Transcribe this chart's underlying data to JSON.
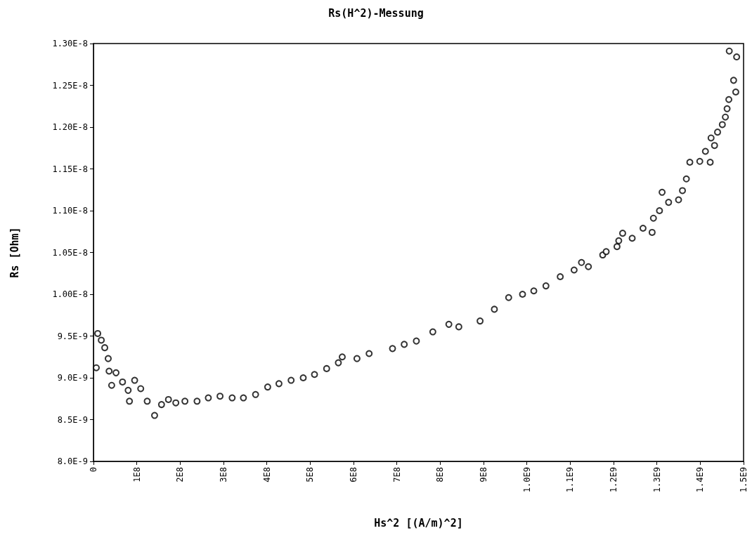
{
  "chart_data": {
    "type": "scatter",
    "title": "Rs(H^2)-Messung",
    "xlabel": "Hs^2 [(A/m)^2]",
    "ylabel": "Rs [Ohm]",
    "x": [
      6500000.0,
      9800000.0,
      18000000.0,
      26000000.0,
      34000000.0,
      36000000.0,
      42000000.0,
      52000000.0,
      67000000.0,
      80000000.0,
      83000000.0,
      95000000.0,
      109000000.0,
      124000000.0,
      141000000.0,
      157000000.0,
      173000000.0,
      190000000.0,
      211000000.0,
      239000000.0,
      265000000.0,
      292000000.0,
      320000000.0,
      346000000.0,
      374000000.0,
      402000000.0,
      428000000.0,
      456000000.0,
      484000000.0,
      510000000.0,
      538000000.0,
      565000000.0,
      574000000.0,
      608000000.0,
      636000000.0,
      690000000.0,
      717000000.0,
      745000000.0,
      783000000.0,
      820000000.0,
      843000000.0,
      892000000.0,
      925000000.0,
      958000000.0,
      990000000.0,
      1016000000.0,
      1044000000.0,
      1077000000.0,
      1109000000.0,
      1126000000.0,
      1142000000.0,
      1175000000.0,
      1208000000.0,
      1183000000.0,
      1212000000.0,
      1221000000.0,
      1243000000.0,
      1268000000.0,
      1289000000.0,
      1292000000.0,
      1306000000.0,
      1312000000.0,
      1327000000.0,
      1350000000.0,
      1359000000.0,
      1368000000.0,
      1376000000.0,
      1399000000.0,
      1412000000.0,
      1423000000.0,
      1433000000.0,
      1425000000.0,
      1440000000.0,
      1451000000.0,
      1458000000.0,
      1462000000.0,
      1466000000.0,
      1482000000.0,
      1477000000.0,
      1467000000.0,
      1484000000.0
    ],
    "series": [
      {
        "color": "#000000",
        "values": [
          9.12e-09,
          9.53e-09,
          9.45e-09,
          9.36e-09,
          9.23e-09,
          9.08e-09,
          8.91e-09,
          9.06e-09,
          8.95e-09,
          8.85e-09,
          8.72e-09,
          8.97e-09,
          8.87e-09,
          8.72e-09,
          8.55e-09,
          8.68e-09,
          8.74e-09,
          8.7e-09,
          8.72e-09,
          8.72e-09,
          8.76e-09,
          8.78e-09,
          8.76e-09,
          8.76e-09,
          8.8e-09,
          8.89e-09,
          8.93e-09,
          8.97e-09,
          9e-09,
          9.04e-09,
          9.11e-09,
          9.18e-09,
          9.25e-09,
          9.23e-09,
          9.29e-09,
          9.35e-09,
          9.4e-09,
          9.44e-09,
          9.55e-09,
          9.64e-09,
          9.61e-09,
          9.68e-09,
          9.82e-09,
          9.96e-09,
          1e-08,
          1.004e-08,
          1.01e-08,
          1.021e-08,
          1.029e-08,
          1.038e-08,
          1.033e-08,
          1.047e-08,
          1.057e-08,
          1.051e-08,
          1.064e-08,
          1.073e-08,
          1.067e-08,
          1.079e-08,
          1.074e-08,
          1.091e-08,
          1.1e-08,
          1.122e-08,
          1.11e-08,
          1.113e-08,
          1.124e-08,
          1.138e-08,
          1.158e-08,
          1.159e-08,
          1.171e-08,
          1.158e-08,
          1.178e-08,
          1.187e-08,
          1.194e-08,
          1.203e-08,
          1.212e-08,
          1.222e-08,
          1.233e-08,
          1.242e-08,
          1.256e-08,
          1.291e-08,
          1.284e-08
        ]
      }
    ],
    "xlim": [
      0,
      1500000000.0
    ],
    "xticks": [
      0,
      {
        "value": 100000000.0,
        "label": "1E8"
      },
      {
        "value": 200000000.0,
        "label": "2E8"
      },
      {
        "value": 300000000.0,
        "label": "3E8"
      },
      {
        "value": 400000000.0,
        "label": "4E8"
      },
      {
        "value": 500000000.0,
        "label": "5E8"
      },
      {
        "value": 600000000.0,
        "label": "6E8"
      },
      {
        "value": 700000000.0,
        "label": "7E8"
      },
      {
        "value": 800000000.0,
        "label": "8E8"
      },
      {
        "value": 900000000.0,
        "label": "9E8"
      },
      {
        "value": 1000000000.0,
        "label": "1.0E9"
      },
      {
        "value": 1100000000.0,
        "label": "1.1E9"
      },
      {
        "value": 1200000000.0,
        "label": "1.2E9"
      },
      {
        "value": 1300000000.0,
        "label": "1.3E9"
      },
      {
        "value": 1400000000.0,
        "label": "1.4E9"
      },
      {
        "value": 1500000000.0,
        "label": "1.5E9"
      }
    ],
    "ylim": [
      8e-09,
      1.3e-08
    ],
    "yticks": [
      {
        "value": 8e-09,
        "label": "8.0E-9"
      },
      {
        "value": 8.5e-09,
        "label": "8.5E-9"
      },
      {
        "value": 9e-09,
        "label": "9.0E-9"
      },
      {
        "value": 9.5e-09,
        "label": "9.5E-9"
      },
      {
        "value": 1e-08,
        "label": "1.00E-8"
      },
      {
        "value": 1.05e-08,
        "label": "1.05E-8"
      },
      {
        "value": 1.1e-08,
        "label": "1.10E-8"
      },
      {
        "value": 1.15e-08,
        "label": "1.15E-8"
      },
      {
        "value": 1.2e-08,
        "label": "1.20E-8"
      },
      {
        "value": 1.25e-08,
        "label": "1.25E-8"
      },
      {
        "value": 1.3e-08,
        "label": "1.30E-8"
      }
    ],
    "grid": false,
    "marker": "circle"
  }
}
